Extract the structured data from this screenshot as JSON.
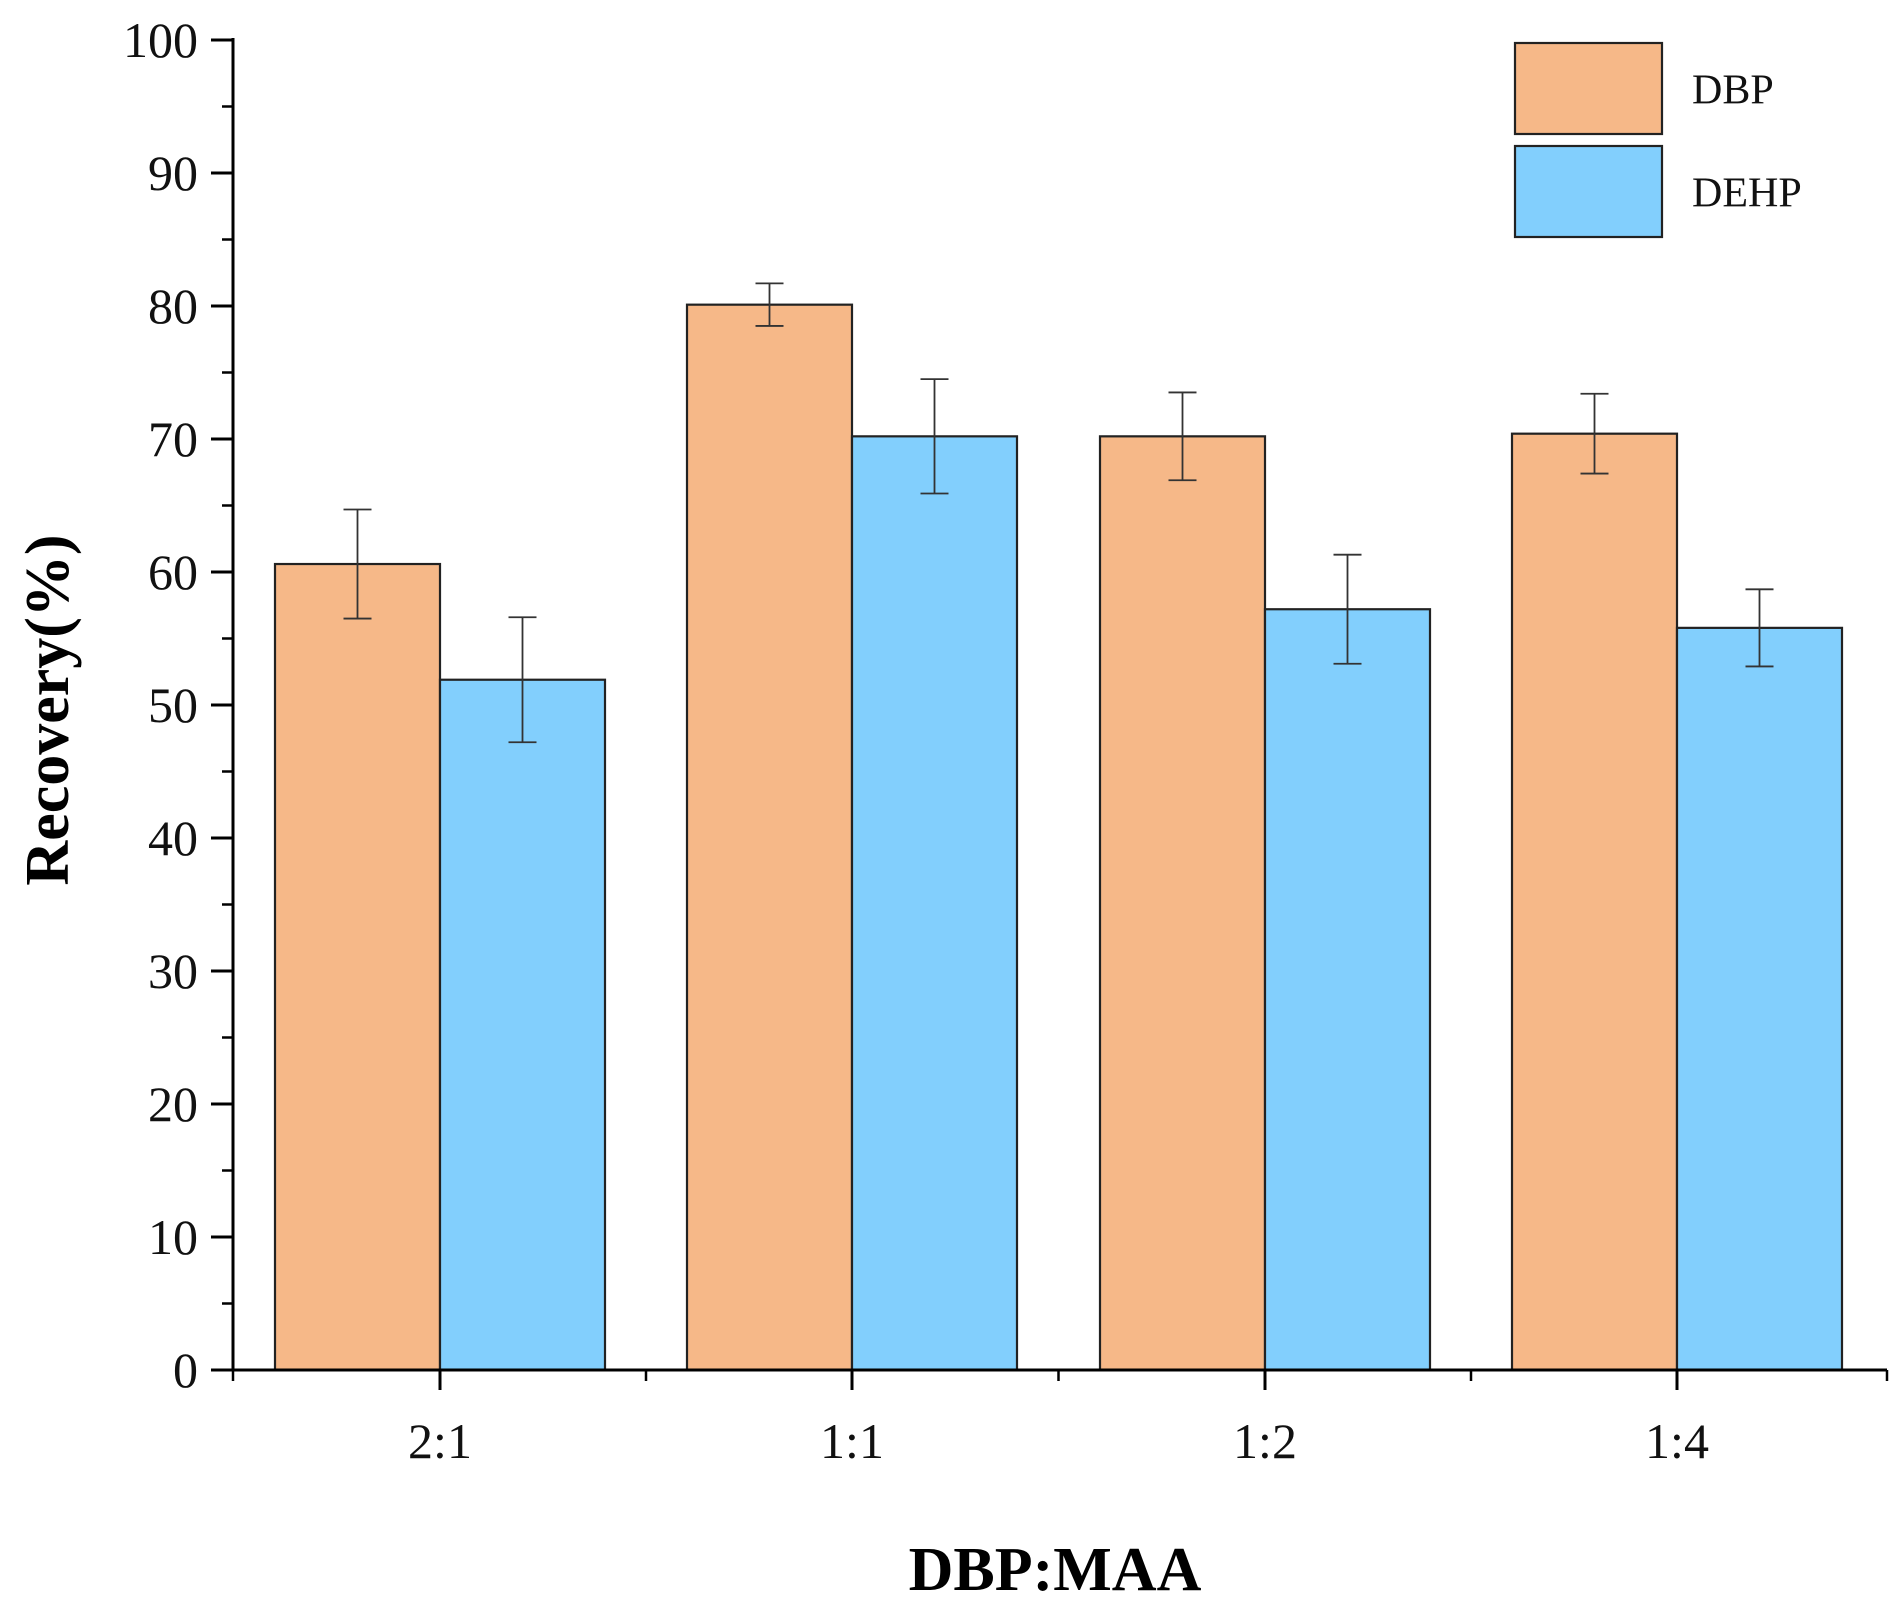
{
  "chart_data": {
    "type": "bar",
    "title": "",
    "xlabel": "DBP:MAA",
    "ylabel": "Recovery(%)",
    "ylim": [
      0,
      100
    ],
    "yticks": [
      0,
      10,
      20,
      30,
      40,
      50,
      60,
      70,
      80,
      90,
      100
    ],
    "categories": [
      "2:1",
      "1:1",
      "1:2",
      "1:4"
    ],
    "series": [
      {
        "name": "DBP",
        "color": "#f6b888",
        "values": [
          60.6,
          80.1,
          70.2,
          70.4
        ],
        "errors": [
          4.1,
          1.6,
          3.3,
          3.0
        ]
      },
      {
        "name": "DEHP",
        "color": "#82cffd",
        "values": [
          51.9,
          70.2,
          57.2,
          55.8
        ],
        "errors": [
          4.7,
          4.3,
          4.1,
          2.9
        ]
      }
    ],
    "legend_position": "top-right",
    "grid": false
  }
}
